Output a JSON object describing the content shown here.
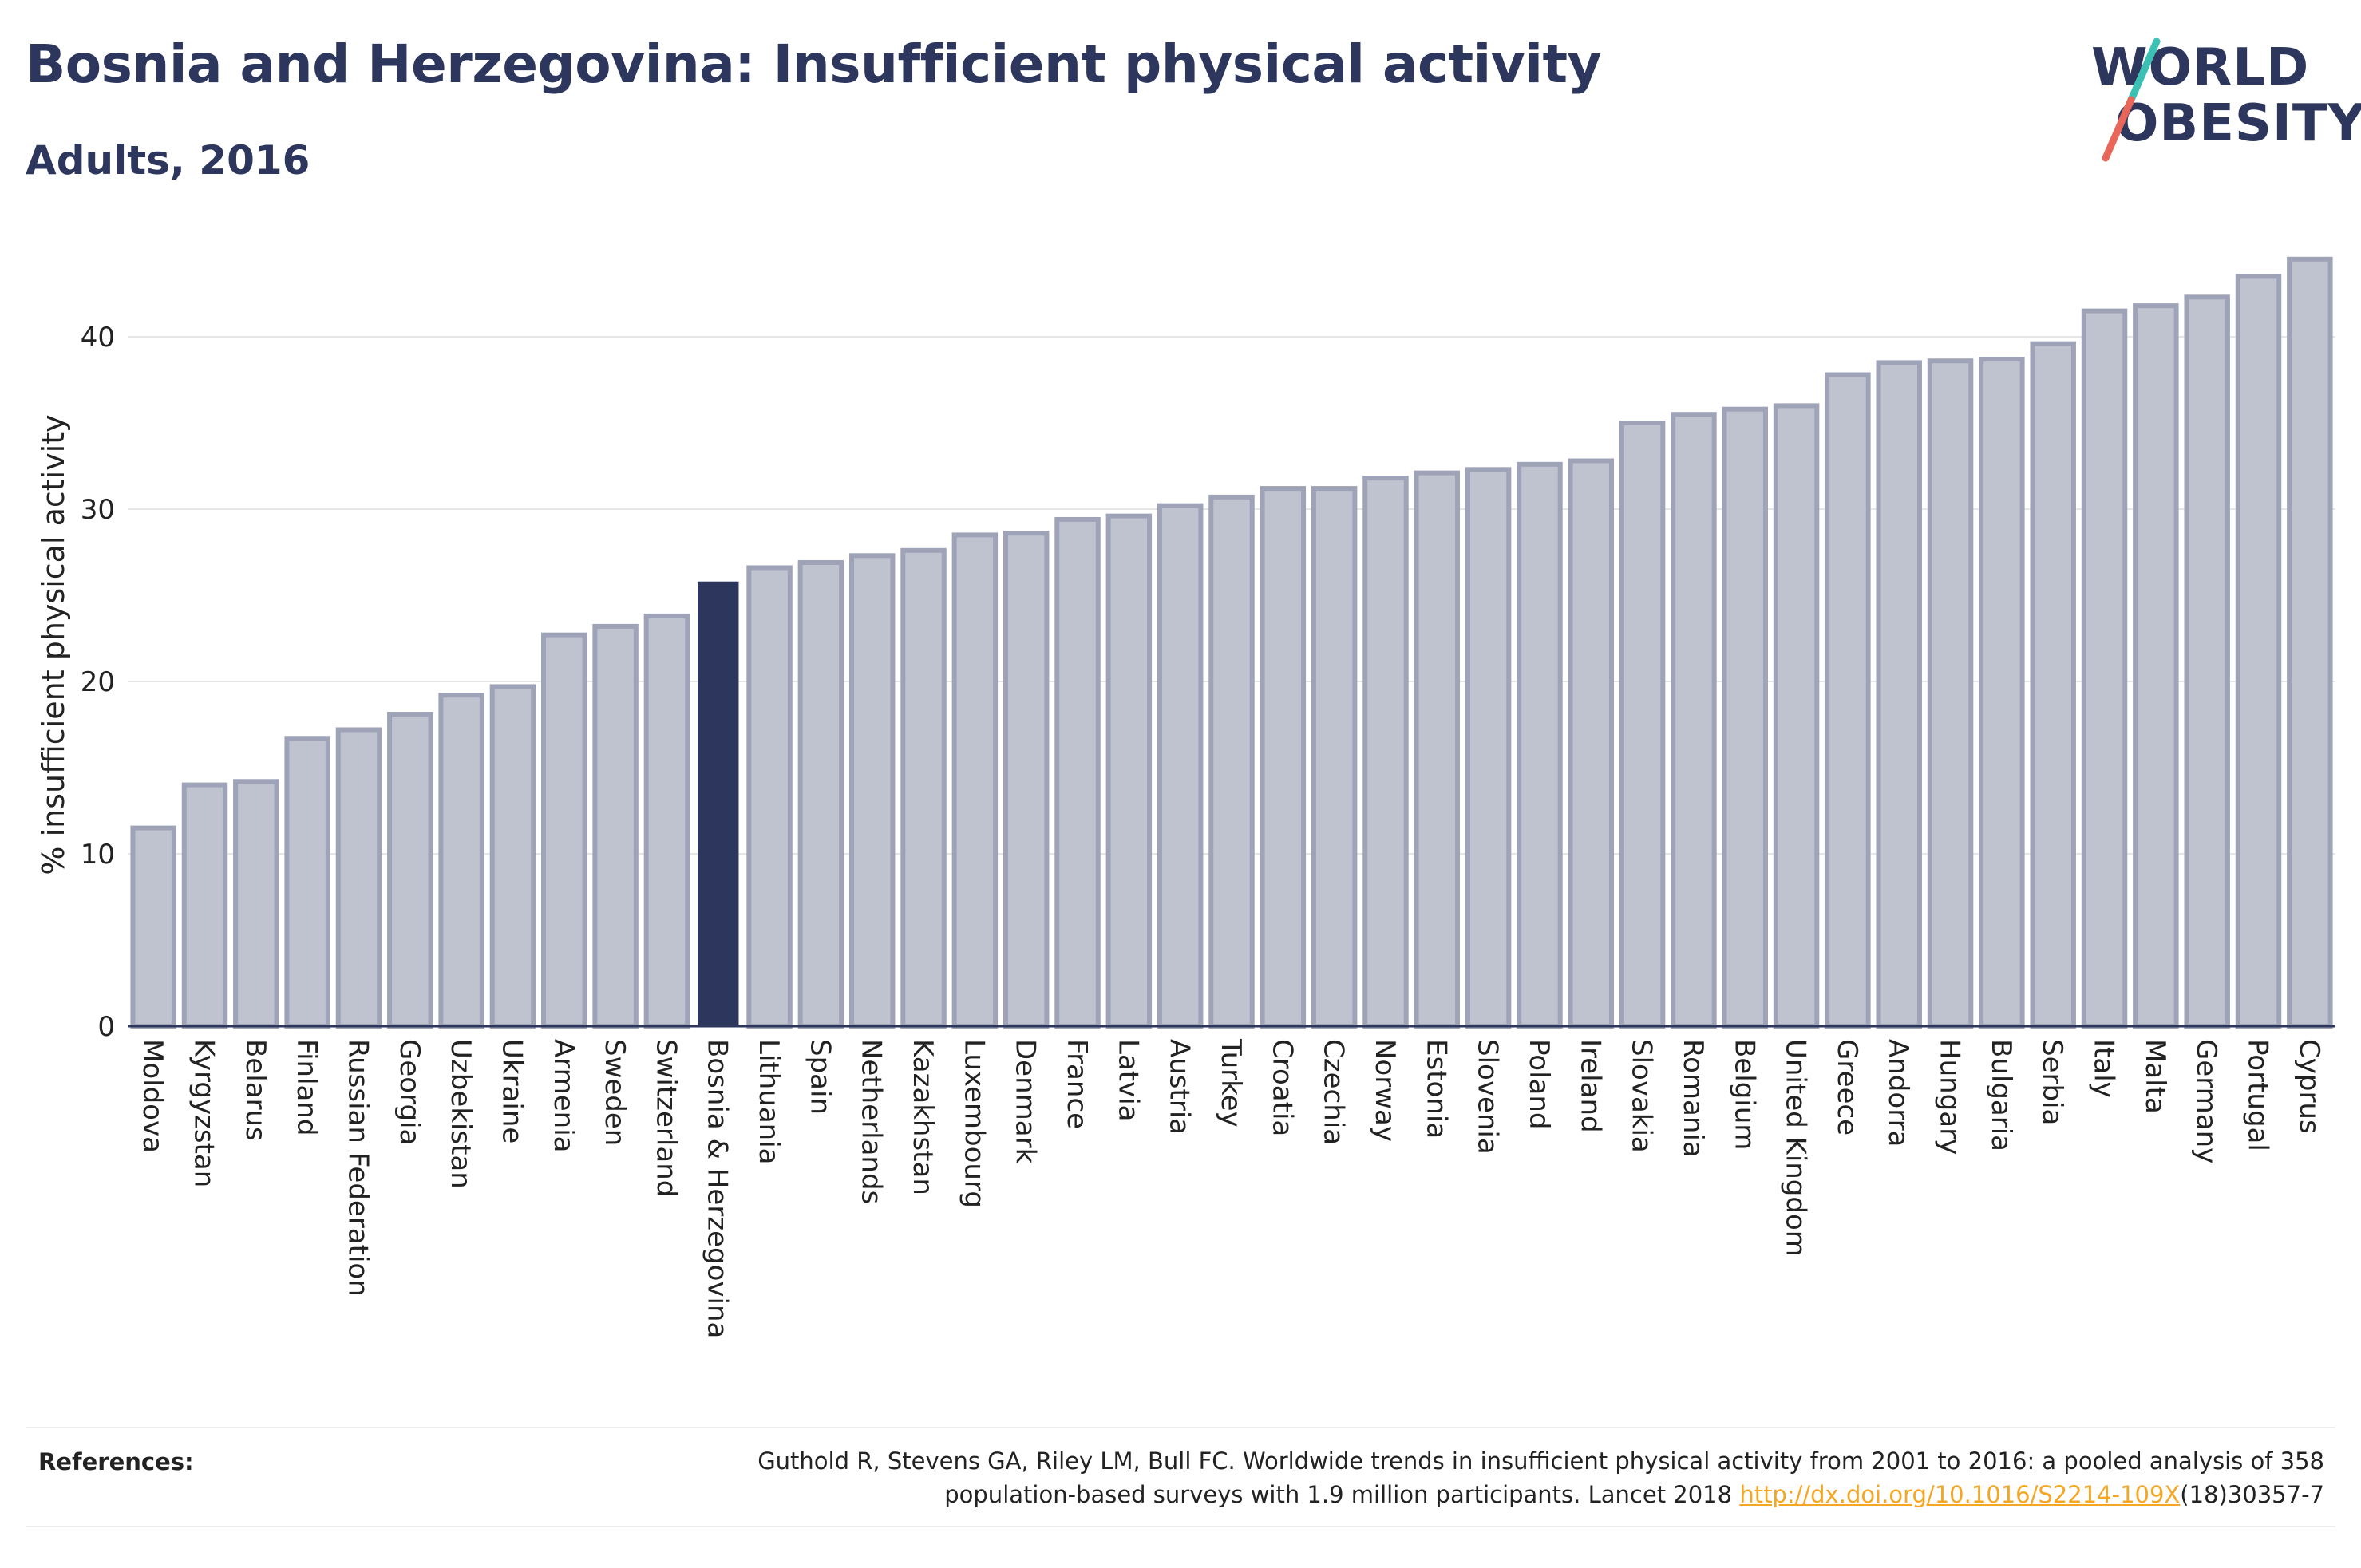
{
  "header": {
    "title": "Bosnia and Herzegovina: Insufficient physical activity",
    "subtitle": "Adults, 2016"
  },
  "logo": {
    "line1": "WORLD",
    "line2": "OBESITY",
    "colors": {
      "text": "#2d365c",
      "slash_top": "#3cc0b4",
      "slash_bottom": "#e8665a"
    }
  },
  "chart_data": {
    "type": "bar",
    "ylabel": "% insufficient physical activity",
    "xlabel": "",
    "ylim": [
      0,
      45
    ],
    "yticks": [
      0,
      10,
      20,
      30,
      40
    ],
    "grid": true,
    "highlight": "Bosnia & Herzegovina",
    "colors": {
      "bar": "#bfc3d0",
      "bar_border": "#9ea3b8",
      "highlight": "#2d365c"
    },
    "categories": [
      "Moldova",
      "Kyrgyzstan",
      "Belarus",
      "Finland",
      "Russian Federation",
      "Georgia",
      "Uzbekistan",
      "Ukraine",
      "Armenia",
      "Sweden",
      "Switzerland",
      "Bosnia & Herzegovina",
      "Lithuania",
      "Spain",
      "Netherlands",
      "Kazakhstan",
      "Luxembourg",
      "Denmark",
      "France",
      "Latvia",
      "Austria",
      "Turkey",
      "Croatia",
      "Czechia",
      "Norway",
      "Estonia",
      "Slovenia",
      "Poland",
      "Ireland",
      "Slovakia",
      "Romania",
      "Belgium",
      "United Kingdom",
      "Greece",
      "Andorra",
      "Hungary",
      "Bulgaria",
      "Serbia",
      "Italy",
      "Malta",
      "Germany",
      "Portugal",
      "Cyprus"
    ],
    "values": [
      11.5,
      14.0,
      14.2,
      16.7,
      17.2,
      18.1,
      19.2,
      19.7,
      22.7,
      23.2,
      23.8,
      25.8,
      26.6,
      26.9,
      27.3,
      27.6,
      28.5,
      28.6,
      29.4,
      29.6,
      30.2,
      30.7,
      31.2,
      31.2,
      31.8,
      32.1,
      32.3,
      32.6,
      32.8,
      35.0,
      35.5,
      35.8,
      36.0,
      37.8,
      38.5,
      38.6,
      38.7,
      39.6,
      41.5,
      41.8,
      42.3,
      43.5,
      44.5
    ]
  },
  "references": {
    "label": "References:",
    "line1": "Guthold R, Stevens GA, Riley LM, Bull FC. Worldwide trends in insufficient physical activity from 2001 to 2016: a pooled analysis of 358",
    "line2_before": "population-based surveys with 1.9 million participants. Lancet 2018 ",
    "link": "http://dx.doi.org/10.1016/S2214-109X",
    "line2_after": "(18)30357-7"
  }
}
